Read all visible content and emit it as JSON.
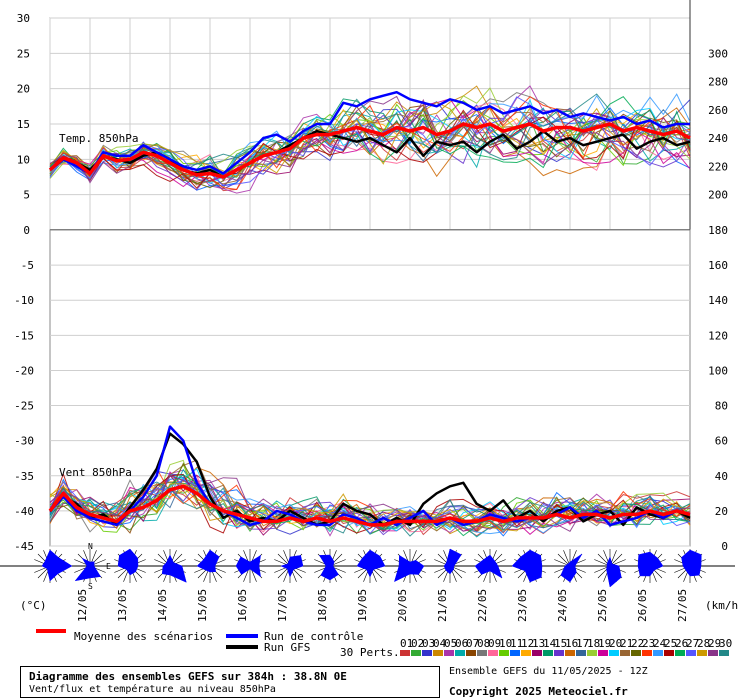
{
  "chart_data": {
    "type": "line",
    "title": "Diagramme des ensembles GEFS sur 384h : 38.8N 0E",
    "subtitle": "Vent/flux et température au niveau 850hPa",
    "run_info": "Ensemble GEFS du 11/05/2025 - 12Z",
    "copyright": "Copyright 2025 Meteociel.fr",
    "x_dates": [
      "12/05",
      "13/05",
      "14/05",
      "15/05",
      "16/05",
      "17/05",
      "18/05",
      "19/05",
      "20/05",
      "21/05",
      "22/05",
      "23/05",
      "24/05",
      "25/05",
      "26/05",
      "27/05"
    ],
    "temp_panel": {
      "label": "Temp. 850hPa",
      "ylim": [
        0,
        30
      ],
      "ticks": [
        0,
        5,
        10,
        15,
        20,
        25,
        30
      ],
      "mean": [
        8.5,
        10.2,
        9.5,
        8.0,
        10.5,
        9.8,
        10.0,
        11.0,
        10.5,
        9.5,
        8.5,
        7.8,
        8.0,
        7.5,
        8.5,
        9.5,
        10.5,
        11.0,
        11.5,
        13.0,
        13.5,
        13.5,
        14.0,
        14.5,
        14.0,
        13.5,
        14.5,
        14.0,
        14.5,
        13.5,
        14.0,
        15.0,
        14.5,
        15.0,
        14.0,
        14.5,
        15.0,
        14.0,
        14.5,
        14.5,
        14.0,
        14.5,
        15.0,
        14.0,
        14.5,
        14.0,
        13.5,
        14.0,
        13.0
      ],
      "control": [
        8.5,
        10.0,
        9.0,
        8.0,
        11.0,
        10.5,
        10.5,
        12.0,
        11.0,
        10.0,
        9.0,
        8.5,
        9.0,
        8.0,
        9.5,
        11.0,
        13.0,
        13.5,
        12.5,
        14.0,
        15.0,
        15.0,
        18.0,
        17.5,
        18.5,
        19.0,
        19.5,
        18.5,
        18.0,
        17.5,
        18.5,
        18.0,
        17.0,
        17.5,
        16.5,
        17.0,
        17.5,
        16.5,
        17.0,
        16.0,
        16.5,
        16.0,
        15.5,
        16.0,
        15.0,
        15.5,
        14.5,
        15.0,
        15.0
      ],
      "gfs": [
        8.5,
        10.0,
        9.5,
        8.5,
        10.5,
        10.0,
        9.5,
        10.5,
        11.0,
        10.0,
        8.5,
        8.0,
        8.5,
        7.5,
        8.5,
        9.5,
        10.5,
        11.0,
        12.0,
        13.0,
        14.0,
        13.5,
        13.0,
        12.5,
        13.0,
        12.0,
        11.0,
        13.0,
        10.5,
        12.5,
        12.0,
        12.5,
        11.0,
        12.5,
        13.5,
        11.5,
        12.5,
        14.0,
        12.5,
        13.0,
        12.0,
        12.5,
        13.0,
        13.5,
        11.5,
        12.5,
        13.0,
        12.0,
        12.5
      ]
    },
    "wind_panel": {
      "label": "Vent 850hPa",
      "ylim": [
        -45,
        0
      ],
      "ticks": [
        -45,
        -40,
        -35,
        -30,
        -25,
        -20,
        -15,
        -10,
        -5,
        0
      ],
      "right_ticks": [
        0,
        20,
        40,
        60,
        80,
        100,
        120,
        140,
        160,
        180
      ],
      "right_ticks_temp": [
        200,
        220,
        240,
        260,
        280,
        300
      ],
      "mean": [
        -40.0,
        -37.5,
        -39.5,
        -40.5,
        -41.0,
        -41.5,
        -40.0,
        -39.5,
        -38.5,
        -37.0,
        -36.5,
        -37.5,
        -39.0,
        -40.0,
        -40.5,
        -41.0,
        -41.5,
        -41.5,
        -41.0,
        -41.5,
        -41.0,
        -41.5,
        -41.0,
        -41.5,
        -42.0,
        -42.0,
        -41.5,
        -41.5,
        -41.5,
        -41.5,
        -41.0,
        -41.5,
        -41.5,
        -41.0,
        -41.5,
        -41.0,
        -41.0,
        -41.0,
        -40.5,
        -41.0,
        -40.5,
        -40.5,
        -41.0,
        -40.5,
        -40.5,
        -40.0,
        -40.5,
        -40.0,
        -40.5
      ],
      "control": [
        -40.0,
        -38.0,
        -40.0,
        -41.0,
        -41.5,
        -42.0,
        -40.0,
        -38.0,
        -35.0,
        -28.0,
        -30.0,
        -36.0,
        -39.0,
        -40.0,
        -41.0,
        -42.0,
        -41.5,
        -40.0,
        -40.5,
        -41.5,
        -42.0,
        -42.0,
        -40.5,
        -41.0,
        -42.0,
        -41.0,
        -42.0,
        -41.0,
        -40.0,
        -42.0,
        -41.0,
        -42.0,
        -41.5,
        -40.5,
        -41.0,
        -41.5,
        -41.0,
        -41.0,
        -40.5,
        -39.5,
        -41.0,
        -40.0,
        -42.0,
        -41.5,
        -41.0,
        -40.0,
        -41.0,
        -40.0,
        -40.5
      ],
      "gfs": [
        -40.0,
        -38.0,
        -39.0,
        -41.0,
        -40.5,
        -42.0,
        -39.5,
        -37.0,
        -34.0,
        -29.0,
        -30.5,
        -33.0,
        -38.0,
        -41.0,
        -40.0,
        -41.5,
        -41.0,
        -41.5,
        -40.0,
        -41.0,
        -42.0,
        -41.5,
        -39.0,
        -40.0,
        -40.5,
        -42.0,
        -41.0,
        -42.0,
        -39.0,
        -37.5,
        -36.5,
        -36.0,
        -39.0,
        -40.0,
        -38.5,
        -41.0,
        -40.0,
        -41.5,
        -40.0,
        -39.5,
        -41.5,
        -40.5,
        -40.0,
        -42.0,
        -39.5,
        -40.5,
        -41.0,
        -40.0,
        -41.0
      ]
    },
    "legend": {
      "mean": "Moyenne des scénarios",
      "control": "Run de contrôle",
      "gfs": "Run GFS",
      "perts": "30 Perts."
    },
    "units": {
      "left": "(°C)",
      "right": "(km/h)"
    },
    "compass": {
      "n": "N",
      "s": "S",
      "e": "E"
    },
    "pert_numbers": [
      "01",
      "02",
      "03",
      "04",
      "05",
      "06",
      "07",
      "08",
      "09",
      "10",
      "11",
      "12",
      "13",
      "14",
      "15",
      "16",
      "17",
      "18",
      "19",
      "20",
      "21",
      "22",
      "23",
      "24",
      "25",
      "26",
      "27",
      "28",
      "29",
      "30"
    ],
    "pert_colors": [
      "#cc3333",
      "#33aa33",
      "#3333cc",
      "#cc8800",
      "#aa33aa",
      "#00aaaa",
      "#884400",
      "#777777",
      "#ff6699",
      "#66cc00",
      "#0066ff",
      "#ffaa00",
      "#990066",
      "#009966",
      "#6633cc",
      "#cc6600",
      "#336699",
      "#99cc33",
      "#cc0099",
      "#00ccff",
      "#996633",
      "#666600",
      "#ff3300",
      "#3399ff",
      "#aa0000",
      "#00aa55",
      "#5555ff",
      "#cc9900",
      "#883388",
      "#228888"
    ],
    "colors": {
      "mean": "#ff0000",
      "control": "#0000ff",
      "gfs": "#000000"
    }
  }
}
